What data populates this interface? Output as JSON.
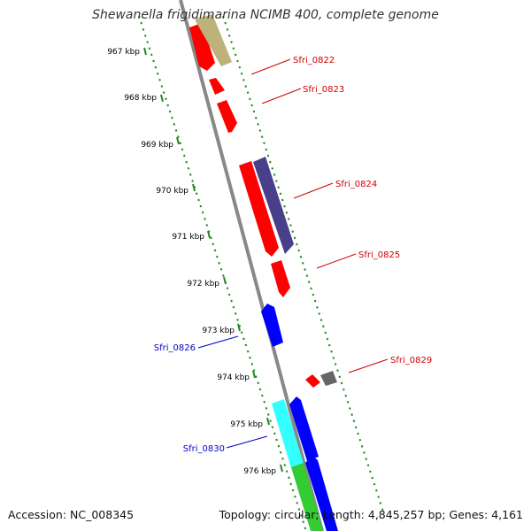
{
  "title": "Shewanella frigidimarina NCIMB 400, complete genome",
  "footer": {
    "accession": "Accession: NC_008345",
    "summary": "Topology: circular; Length: 4,845,257 bp; Genes: 4,161"
  },
  "ruler": [
    "967 kbp",
    "968 kbp",
    "969 kbp",
    "970 kbp",
    "971 kbp",
    "972 kbp",
    "973 kbp",
    "974 kbp",
    "975 kbp",
    "976 kbp"
  ],
  "genes": [
    {
      "label": "Sfri_0822",
      "color": "#d00000"
    },
    {
      "label": "Sfri_0823",
      "color": "#d00000"
    },
    {
      "label": "Sfri_0824",
      "color": "#d00000"
    },
    {
      "label": "Sfri_0825",
      "color": "#d00000"
    },
    {
      "label": "Sfri_0826",
      "color": "#0000cc"
    },
    {
      "label": "Sfri_0829",
      "color": "#d00000"
    },
    {
      "label": "Sfri_0830",
      "color": "#0000cc"
    }
  ],
  "colors": {
    "red": "#ff0000",
    "blue": "#0000ff",
    "khaki": "#bdb27a",
    "purple": "#4a3f8a",
    "gray": "#666666",
    "cyan": "#33ffff",
    "green": "#33cc33",
    "backbone": "#888888",
    "tick": "#228822"
  }
}
